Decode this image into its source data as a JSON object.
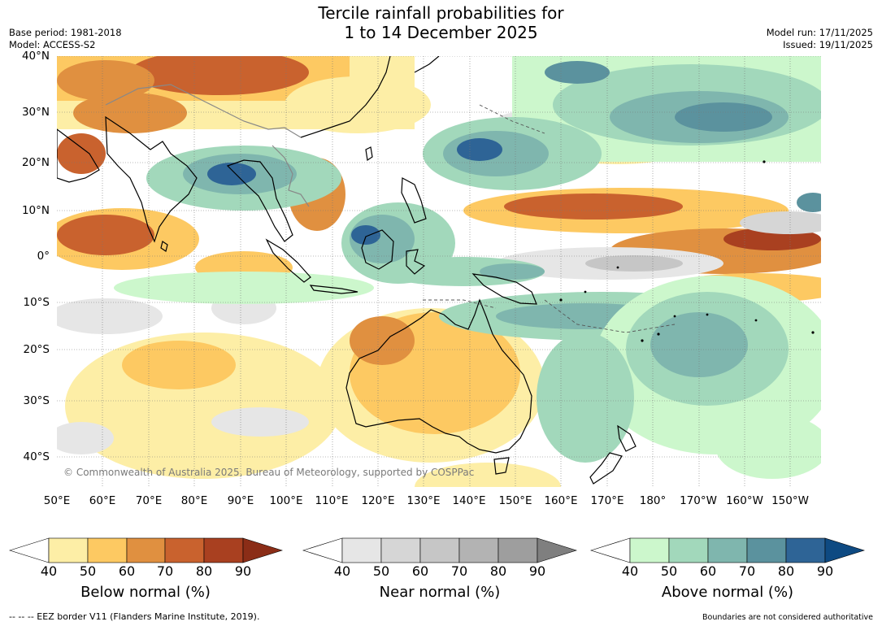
{
  "header": {
    "title_line1": "Tercile rainfall probabilities for",
    "title_line2": "1 to 14 December 2025",
    "base_period": "Base period: 1981-2018",
    "model": "Model: ACCESS-S2",
    "model_run": "Model run: 17/11/2025",
    "issued": "Issued: 19/11/2025"
  },
  "map": {
    "lat_labels": [
      "40°N",
      "30°N",
      "20°N",
      "10°N",
      "0°",
      "10°S",
      "20°S",
      "30°S",
      "40°S"
    ],
    "lon_labels": [
      "50°E",
      "60°E",
      "70°E",
      "80°E",
      "90°E",
      "100°E",
      "110°E",
      "120°E",
      "130°E",
      "140°E",
      "150°E",
      "160°E",
      "170°E",
      "180°",
      "170°W",
      "160°W",
      "150°W"
    ],
    "copyright": "© Commonwealth of Australia 2025, Bureau of Meteorology, supported by COSPPac"
  },
  "colorbars": [
    {
      "title": "Below normal (%)",
      "ticks": [
        "40",
        "50",
        "60",
        "70",
        "80",
        "90"
      ],
      "colors": [
        "#fdeea6",
        "#fdc962",
        "#e09040",
        "#c9622e",
        "#a94020",
        "#8b2d17"
      ]
    },
    {
      "title": "Near normal (%)",
      "ticks": [
        "40",
        "50",
        "60",
        "70",
        "80",
        "90"
      ],
      "colors": [
        "#e6e6e6",
        "#d6d6d6",
        "#c6c6c6",
        "#b3b3b3",
        "#9e9e9e",
        "#7f7f7f"
      ]
    },
    {
      "title": "Above normal (%)",
      "ticks": [
        "40",
        "50",
        "60",
        "70",
        "80",
        "90"
      ],
      "colors": [
        "#ccf7cc",
        "#a2d8bb",
        "#7fb6ae",
        "#5b929e",
        "#2e6496",
        "#0e4a82"
      ]
    }
  ],
  "footer": {
    "eez": "--  --  -- EEZ border V11 (Flanders Marine Institute, 2019).",
    "disclaimer": "Boundaries are not considered authoritative"
  }
}
